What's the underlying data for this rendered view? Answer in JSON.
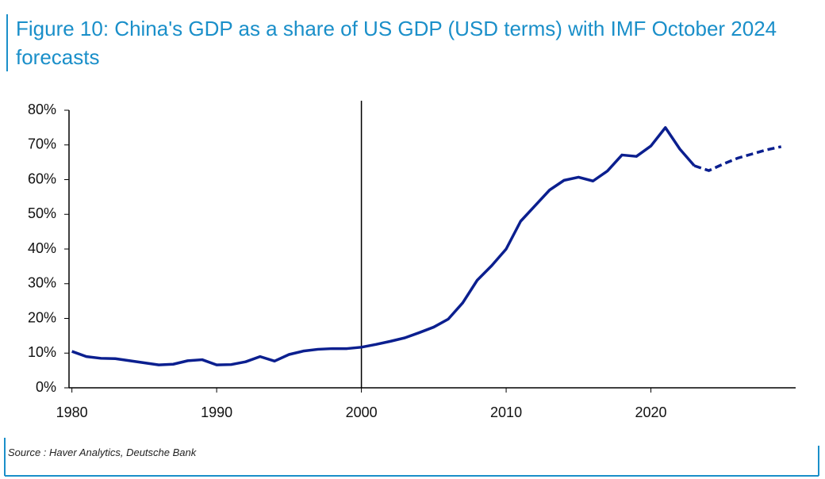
{
  "chart_data": {
    "type": "line",
    "title": "Figure 10: China's GDP as a share of US GDP (USD terms) with IMF October 2024 forecasts",
    "source": "Source : Haver Analytics, Deutsche Bank",
    "x": [
      1980,
      1981,
      1982,
      1983,
      1984,
      1985,
      1986,
      1987,
      1988,
      1989,
      1990,
      1991,
      1992,
      1993,
      1994,
      1995,
      1996,
      1997,
      1998,
      1999,
      2000,
      2001,
      2002,
      2003,
      2004,
      2005,
      2006,
      2007,
      2008,
      2009,
      2010,
      2011,
      2012,
      2013,
      2014,
      2015,
      2016,
      2017,
      2018,
      2019,
      2020,
      2021,
      2022,
      2023,
      2024,
      2025,
      2026,
      2027,
      2028,
      2029
    ],
    "series": [
      {
        "color": "#0b1f8f",
        "dash": false,
        "values": [
          10.5,
          9,
          8.5,
          8.4,
          7.8,
          7.2,
          6.6,
          6.8,
          7.8,
          8.1,
          6.6,
          6.7,
          7.5,
          9,
          7.7,
          9.6,
          10.6,
          11.1,
          11.3,
          11.3,
          11.7,
          12.5,
          13.4,
          14.4,
          15.9,
          17.5,
          19.8,
          24.5,
          31,
          35.2,
          40,
          48,
          52.5,
          57,
          59.8,
          60.7,
          59.6,
          62.5,
          67.1,
          66.7,
          69.7,
          75,
          68.8,
          64,
          null,
          null,
          null,
          null,
          null,
          null
        ]
      },
      {
        "color": "#0b1f8f",
        "dash": true,
        "values": [
          null,
          null,
          null,
          null,
          null,
          null,
          null,
          null,
          null,
          null,
          null,
          null,
          null,
          null,
          null,
          null,
          null,
          null,
          null,
          null,
          null,
          null,
          null,
          null,
          null,
          null,
          null,
          null,
          null,
          null,
          null,
          null,
          null,
          null,
          null,
          null,
          null,
          null,
          null,
          null,
          null,
          null,
          null,
          64,
          62.6,
          64.5,
          66.2,
          67.4,
          68.6,
          69.5
        ]
      }
    ],
    "vline": 2000,
    "xlim": [
      1979.8,
      2030
    ],
    "xticks": [
      1980,
      1990,
      2000,
      2010,
      2020
    ],
    "ylim": [
      0,
      80
    ],
    "yticks": [
      {
        "value": 0,
        "label": "0%"
      },
      {
        "value": 10,
        "label": "10%"
      },
      {
        "value": 20,
        "label": "20%"
      },
      {
        "value": 30,
        "label": "30%"
      },
      {
        "value": 40,
        "label": "40%"
      },
      {
        "value": 50,
        "label": "50%"
      },
      {
        "value": 60,
        "label": "60%"
      },
      {
        "value": 70,
        "label": "70%"
      },
      {
        "value": 80,
        "label": "80%"
      }
    ]
  }
}
